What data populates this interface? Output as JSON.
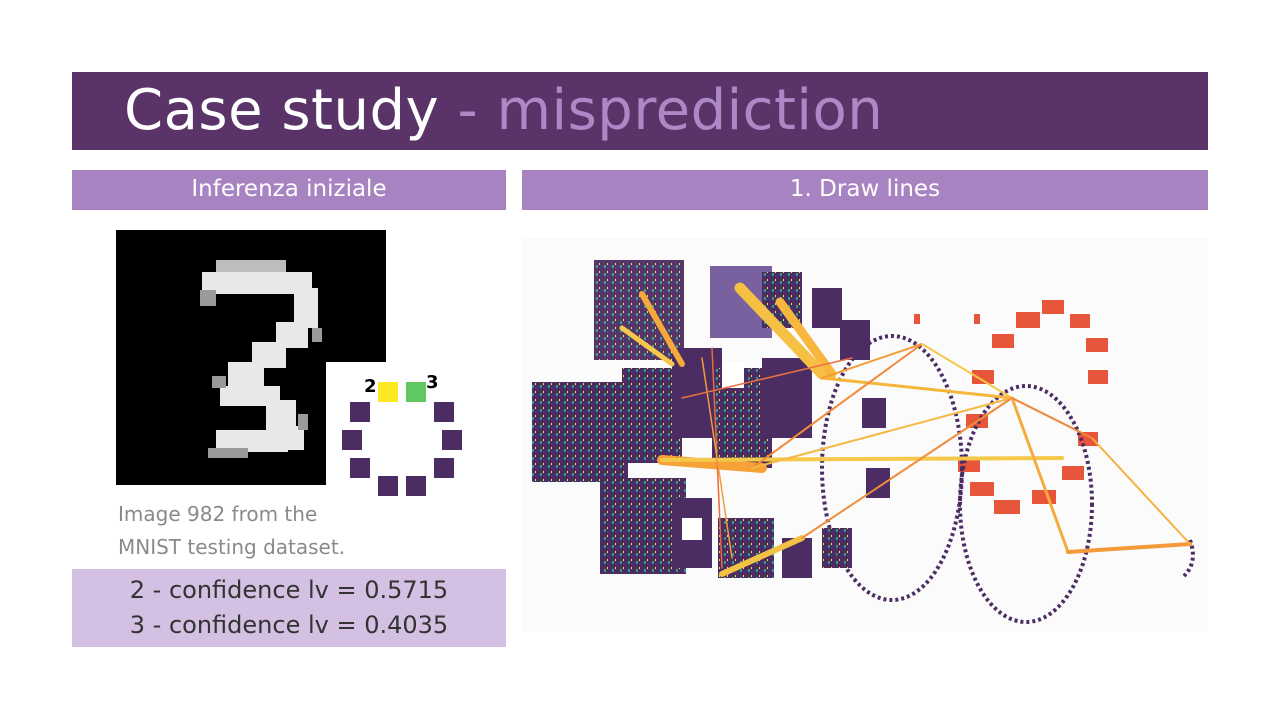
{
  "title": {
    "main": "Case study",
    "accent": "- misprediction"
  },
  "left_header": "Inferenza iniziale",
  "right_header": "1. Draw lines",
  "output_labels": {
    "first": "2",
    "second": "3"
  },
  "caption": {
    "line1": "Image 982 from the",
    "line2": "MNIST testing dataset."
  },
  "confidence": {
    "line1": "2 - confidence lv = 0.5715",
    "line2": "3 - confidence lv = 0.4035"
  },
  "colors": {
    "title_bar": "#5a3368",
    "title_accent": "#ad88c7",
    "header_bg": "#a783c1",
    "confidence_bg": "#d4c0e2",
    "node_purple": "#4b2c63",
    "node_yellow": "#fde725",
    "node_green": "#5ec962"
  }
}
